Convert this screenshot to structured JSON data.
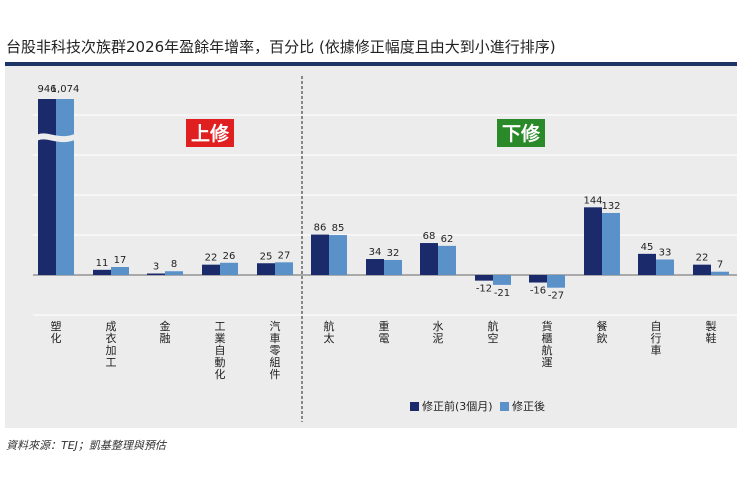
{
  "title": "台股非科技次族群2026年盈餘年增率，百分比 (依據修正幅度且由大到小進行排序)",
  "source": "資料來源：TEJ；凱基整理與預估",
  "colors": {
    "before": "#1b2a6b",
    "after": "#5a91c9",
    "up": "#e02020",
    "down": "#2a8a2a",
    "rule": "#1c3566",
    "panel": "#ececec"
  },
  "chart_data": {
    "type": "bar",
    "title": "台股非科技次族群2026年盈餘年增率，百分比 (依據修正幅度且由大到小進行排序)",
    "categories": [
      "塑化",
      "成衣加工",
      "金融",
      "工業自動化",
      "汽車零組件",
      "航太",
      "重電",
      "水泥",
      "航空",
      "貨櫃航運",
      "餐飲",
      "自行車",
      "製鞋"
    ],
    "series": [
      {
        "name": "修正前(3個月)",
        "values": [
          946,
          11,
          3,
          22,
          25,
          86,
          34,
          68,
          -12,
          -16,
          144,
          45,
          22
        ]
      },
      {
        "name": "修正後",
        "values": [
          1074,
          17,
          8,
          26,
          27,
          85,
          32,
          62,
          -21,
          -27,
          132,
          33,
          7
        ]
      }
    ],
    "labels": [
      [
        "946",
        "1,074"
      ],
      [
        "11",
        "17"
      ],
      [
        "3",
        "8"
      ],
      [
        "22",
        "26"
      ],
      [
        "25",
        "27"
      ],
      [
        "86",
        "85"
      ],
      [
        "34",
        "32"
      ],
      [
        "68",
        "62"
      ],
      [
        "-12",
        "-21"
      ],
      [
        "-16",
        "-27"
      ],
      [
        "144",
        "132"
      ],
      [
        "45",
        "33"
      ],
      [
        "22",
        "7"
      ]
    ],
    "axis_break": {
      "category": "塑化",
      "note": "broken axis for outlier values"
    },
    "groups": [
      {
        "label": "上修",
        "categories": [
          "塑化",
          "成衣加工",
          "金融",
          "工業自動化",
          "汽車零組件"
        ]
      },
      {
        "label": "下修",
        "categories": [
          "航太",
          "重電",
          "水泥",
          "航空",
          "貨櫃航運",
          "餐飲",
          "自行車",
          "製鞋"
        ]
      }
    ],
    "xlabel": "",
    "ylabel": "",
    "ylim": [
      -35,
      160
    ],
    "grid": true,
    "legend": "bottom-right"
  }
}
